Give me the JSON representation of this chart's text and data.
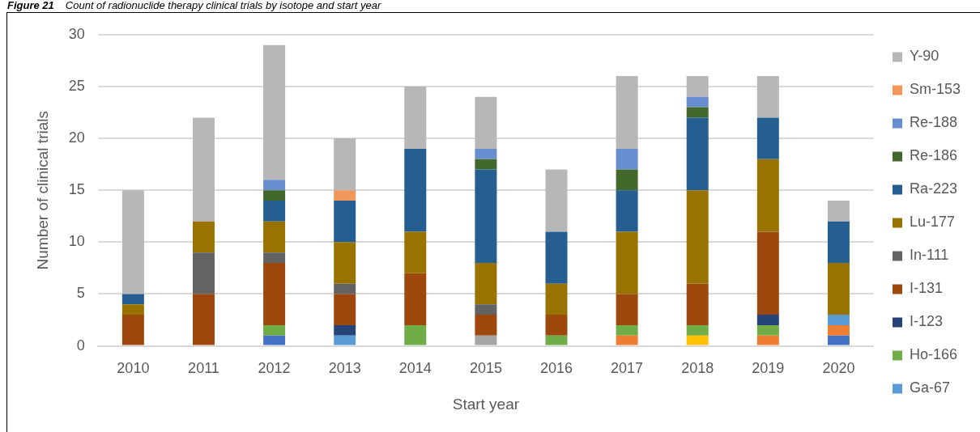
{
  "chart_data": {
    "type": "bar",
    "title": "Figure 21",
    "subtitle": "Count of radionuclide therapy clinical trials by isotope and start year",
    "xlabel": "Start year",
    "ylabel": "Number of clinical trials",
    "categories": [
      "2010",
      "2011",
      "2012",
      "2013",
      "2014",
      "2015",
      "2016",
      "2017",
      "2018",
      "2019",
      "2020"
    ],
    "stacked": true,
    "ylim": [
      0,
      30
    ],
    "yticks": [
      0,
      5,
      10,
      15,
      20,
      25,
      30
    ],
    "grid": "y",
    "legend": "right",
    "series": [
      {
        "color": "#4472c4",
        "values": [
          null,
          null,
          1,
          null,
          null,
          null,
          null,
          null,
          null,
          null,
          1
        ]
      },
      {
        "color": "#ed7d31",
        "values": [
          null,
          null,
          null,
          null,
          null,
          null,
          null,
          1,
          null,
          1,
          1
        ]
      },
      {
        "color": "#a5a5a5",
        "values": [
          null,
          null,
          null,
          null,
          null,
          1,
          null,
          null,
          null,
          null,
          null
        ]
      },
      {
        "color": "#ffc000",
        "values": [
          null,
          null,
          null,
          null,
          null,
          null,
          null,
          null,
          1,
          null,
          null
        ]
      },
      {
        "name": "Ga-67",
        "color": "#5b9bd5",
        "values": [
          null,
          null,
          null,
          1,
          null,
          null,
          null,
          null,
          null,
          null,
          1
        ]
      },
      {
        "name": "Ho-166",
        "color": "#70ad47",
        "values": [
          null,
          null,
          1,
          null,
          2,
          null,
          1,
          1,
          1,
          1,
          null
        ]
      },
      {
        "name": "I-123",
        "color": "#264478",
        "values": [
          null,
          null,
          null,
          1,
          null,
          null,
          null,
          null,
          null,
          1,
          null
        ]
      },
      {
        "name": "I-131",
        "color": "#9e480e",
        "values": [
          3,
          5,
          6,
          3,
          5,
          2,
          2,
          3,
          4,
          8,
          null
        ]
      },
      {
        "name": "In-111",
        "color": "#636363",
        "values": [
          null,
          4,
          1,
          1,
          null,
          1,
          null,
          null,
          null,
          null,
          null
        ]
      },
      {
        "name": "Lu-177",
        "color": "#997300",
        "values": [
          1,
          3,
          3,
          4,
          4,
          4,
          3,
          6,
          9,
          7,
          5
        ]
      },
      {
        "name": "Ra-223",
        "color": "#255e91",
        "values": [
          1,
          null,
          2,
          4,
          8,
          9,
          5,
          4,
          7,
          4,
          4
        ]
      },
      {
        "name": "Re-186",
        "color": "#43682b",
        "values": [
          null,
          null,
          1,
          null,
          null,
          1,
          null,
          2,
          1,
          null,
          null
        ]
      },
      {
        "name": "Re-188",
        "color": "#698ed0",
        "values": [
          null,
          null,
          1,
          null,
          null,
          1,
          null,
          2,
          1,
          null,
          null
        ]
      },
      {
        "name": "Sm-153",
        "color": "#f1975a",
        "values": [
          null,
          null,
          null,
          1,
          null,
          null,
          null,
          null,
          null,
          null,
          null
        ]
      },
      {
        "name": "Y-90",
        "color": "#b7b7b7",
        "values": [
          10,
          10,
          13,
          5,
          6,
          5,
          6,
          7,
          2,
          4,
          2
        ]
      }
    ]
  }
}
